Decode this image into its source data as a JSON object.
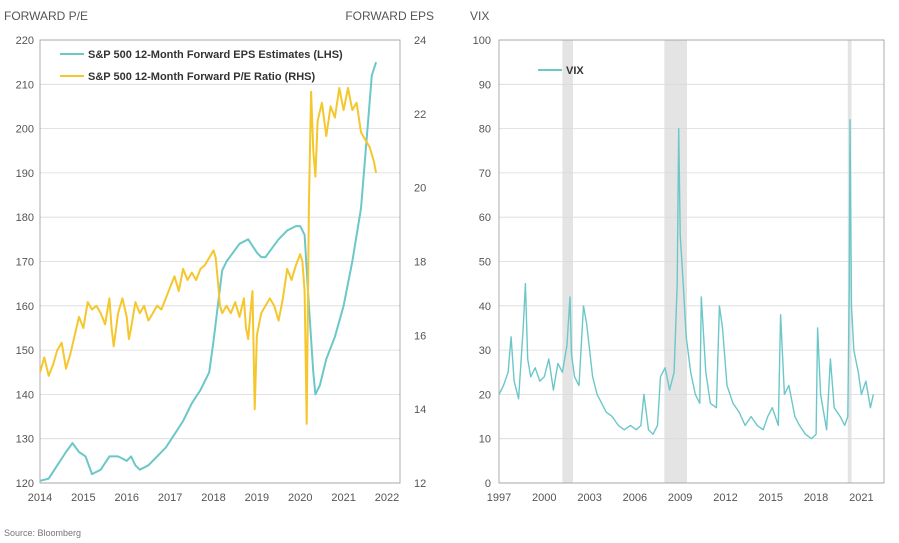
{
  "source_note": "Source: Bloomberg",
  "chart_data": [
    {
      "type": "line",
      "title": "",
      "left_axis_title": "FORWARD P/E",
      "right_axis_title": "FORWARD EPS",
      "xlabel": "",
      "xlim": [
        2014,
        2022.3
      ],
      "x_ticks": [
        "2014",
        "2015",
        "2016",
        "2017",
        "2018",
        "2019",
        "2020",
        "2021",
        "2022"
      ],
      "left_ylim": [
        120,
        220
      ],
      "left_ticks": [
        "120",
        "130",
        "140",
        "150",
        "160",
        "170",
        "180",
        "190",
        "200",
        "210",
        "220"
      ],
      "right_ylim": [
        12,
        24
      ],
      "right_ticks": [
        "12",
        "14",
        "16",
        "18",
        "20",
        "22",
        "24"
      ],
      "legend_position": "top-left",
      "grid": true,
      "series": [
        {
          "name": "S&P 500 12-Month Forward EPS Estimates (LHS)",
          "axis": "left",
          "color": "#6cc7c9",
          "x": [
            2014.0,
            2014.2,
            2014.4,
            2014.6,
            2014.75,
            2014.9,
            2015.05,
            2015.2,
            2015.4,
            2015.6,
            2015.8,
            2016.0,
            2016.1,
            2016.2,
            2016.3,
            2016.5,
            2016.7,
            2016.9,
            2017.1,
            2017.3,
            2017.5,
            2017.7,
            2017.9,
            2018.0,
            2018.1,
            2018.2,
            2018.3,
            2018.45,
            2018.6,
            2018.8,
            2019.0,
            2019.1,
            2019.2,
            2019.35,
            2019.5,
            2019.7,
            2019.9,
            2020.0,
            2020.1,
            2020.2,
            2020.3,
            2020.35,
            2020.45,
            2020.6,
            2020.8,
            2021.0,
            2021.2,
            2021.4,
            2021.55,
            2021.65,
            2021.75
          ],
          "values": [
            120.5,
            121,
            124,
            127,
            129,
            127,
            126,
            122,
            123,
            126,
            126,
            125,
            126,
            124,
            123,
            124,
            126,
            128,
            131,
            134,
            138,
            141,
            145,
            152,
            160,
            168,
            170,
            172,
            174,
            175,
            172,
            171,
            171,
            173,
            175,
            177,
            178,
            178,
            176,
            160,
            145,
            140,
            142,
            148,
            153,
            160,
            170,
            182,
            200,
            212,
            215
          ]
        },
        {
          "name": "S&P 500 12-Month Forward P/E Ratio (RHS)",
          "axis": "right",
          "color": "#f5c72c",
          "x": [
            2014.0,
            2014.1,
            2014.2,
            2014.3,
            2014.4,
            2014.5,
            2014.6,
            2014.7,
            2014.8,
            2014.9,
            2015.0,
            2015.1,
            2015.2,
            2015.3,
            2015.4,
            2015.5,
            2015.6,
            2015.65,
            2015.7,
            2015.8,
            2015.9,
            2016.0,
            2016.05,
            2016.1,
            2016.2,
            2016.3,
            2016.4,
            2016.5,
            2016.6,
            2016.7,
            2016.8,
            2016.9,
            2017.0,
            2017.1,
            2017.2,
            2017.3,
            2017.4,
            2017.5,
            2017.6,
            2017.7,
            2017.8,
            2017.9,
            2018.0,
            2018.05,
            2018.1,
            2018.15,
            2018.2,
            2018.3,
            2018.4,
            2018.5,
            2018.6,
            2018.7,
            2018.75,
            2018.8,
            2018.85,
            2018.9,
            2018.95,
            2019.0,
            2019.1,
            2019.2,
            2019.3,
            2019.4,
            2019.5,
            2019.6,
            2019.7,
            2019.8,
            2019.9,
            2020.0,
            2020.05,
            2020.1,
            2020.15,
            2020.2,
            2020.25,
            2020.3,
            2020.35,
            2020.4,
            2020.5,
            2020.6,
            2020.7,
            2020.8,
            2020.9,
            2021.0,
            2021.1,
            2021.2,
            2021.3,
            2021.4,
            2021.5,
            2021.6,
            2021.7,
            2021.75
          ],
          "values": [
            15.0,
            15.4,
            14.9,
            15.2,
            15.6,
            15.8,
            15.1,
            15.5,
            16.0,
            16.5,
            16.2,
            16.9,
            16.7,
            16.8,
            16.6,
            16.3,
            17.0,
            16.2,
            15.7,
            16.6,
            17.0,
            16.5,
            15.9,
            16.2,
            16.9,
            16.6,
            16.8,
            16.4,
            16.6,
            16.8,
            16.7,
            17.0,
            17.3,
            17.6,
            17.2,
            17.8,
            17.5,
            17.7,
            17.5,
            17.8,
            17.9,
            18.1,
            18.3,
            18.1,
            17.5,
            16.8,
            16.6,
            16.8,
            16.6,
            16.9,
            16.5,
            17.0,
            16.2,
            15.9,
            16.6,
            17.2,
            14.0,
            16.0,
            16.6,
            16.8,
            17.0,
            16.8,
            16.4,
            17.0,
            17.8,
            17.5,
            17.9,
            18.2,
            18.0,
            17.2,
            13.6,
            19.5,
            22.6,
            21.0,
            20.3,
            21.8,
            22.3,
            21.4,
            22.2,
            21.9,
            22.7,
            22.1,
            22.7,
            22.1,
            22.3,
            21.5,
            21.3,
            21.1,
            20.7,
            20.4
          ]
        }
      ]
    },
    {
      "type": "line",
      "title": "",
      "left_axis_title": "VIX",
      "xlabel": "",
      "xlim": [
        1997,
        2022.5
      ],
      "x_ticks": [
        "1997",
        "2000",
        "2003",
        "2006",
        "2009",
        "2012",
        "2015",
        "2018",
        "2021"
      ],
      "ylim": [
        0,
        100
      ],
      "y_ticks": [
        "0",
        "10",
        "20",
        "30",
        "40",
        "50",
        "60",
        "70",
        "80",
        "90",
        "100"
      ],
      "legend_position": "top-left",
      "grid": true,
      "recession_bands": [
        [
          2001.2,
          2001.9
        ],
        [
          2007.95,
          2009.45
        ],
        [
          2020.1,
          2020.35
        ]
      ],
      "series": [
        {
          "name": "VIX",
          "color": "#6cc7c9",
          "x": [
            1997.0,
            1997.3,
            1997.6,
            1997.8,
            1998.0,
            1998.3,
            1998.6,
            1998.75,
            1998.9,
            1999.1,
            1999.4,
            1999.7,
            2000.0,
            2000.3,
            2000.6,
            2000.9,
            2001.2,
            2001.5,
            2001.7,
            2001.8,
            2002.0,
            2002.3,
            2002.6,
            2002.8,
            2003.0,
            2003.2,
            2003.5,
            2003.8,
            2004.1,
            2004.5,
            2004.9,
            2005.3,
            2005.7,
            2006.1,
            2006.4,
            2006.6,
            2006.9,
            2007.2,
            2007.5,
            2007.7,
            2008.0,
            2008.3,
            2008.6,
            2008.8,
            2008.9,
            2009.0,
            2009.2,
            2009.4,
            2009.7,
            2010.0,
            2010.3,
            2010.4,
            2010.7,
            2011.0,
            2011.4,
            2011.6,
            2011.8,
            2012.1,
            2012.5,
            2012.9,
            2013.3,
            2013.7,
            2014.1,
            2014.5,
            2014.8,
            2015.1,
            2015.5,
            2015.65,
            2015.9,
            2016.2,
            2016.6,
            2016.9,
            2017.3,
            2017.7,
            2018.0,
            2018.1,
            2018.3,
            2018.7,
            2018.95,
            2019.2,
            2019.6,
            2019.9,
            2020.1,
            2020.2,
            2020.25,
            2020.35,
            2020.5,
            2020.8,
            2021.0,
            2021.3,
            2021.6,
            2021.8
          ],
          "values": [
            20,
            22,
            25,
            33,
            23,
            19,
            35,
            45,
            28,
            24,
            26,
            23,
            24,
            28,
            21,
            27,
            25,
            31,
            42,
            29,
            24,
            22,
            40,
            36,
            30,
            24,
            20,
            18,
            16,
            15,
            13,
            12,
            13,
            12,
            13,
            20,
            12,
            11,
            13,
            24,
            26,
            21,
            25,
            45,
            80,
            56,
            45,
            33,
            25,
            20,
            18,
            42,
            25,
            18,
            17,
            40,
            35,
            22,
            18,
            16,
            13,
            15,
            13,
            12,
            15,
            17,
            13,
            38,
            20,
            22,
            15,
            13,
            11,
            10,
            11,
            35,
            20,
            12,
            28,
            17,
            15,
            13,
            15,
            45,
            82,
            40,
            30,
            25,
            20,
            23,
            17,
            20
          ]
        }
      ]
    }
  ]
}
